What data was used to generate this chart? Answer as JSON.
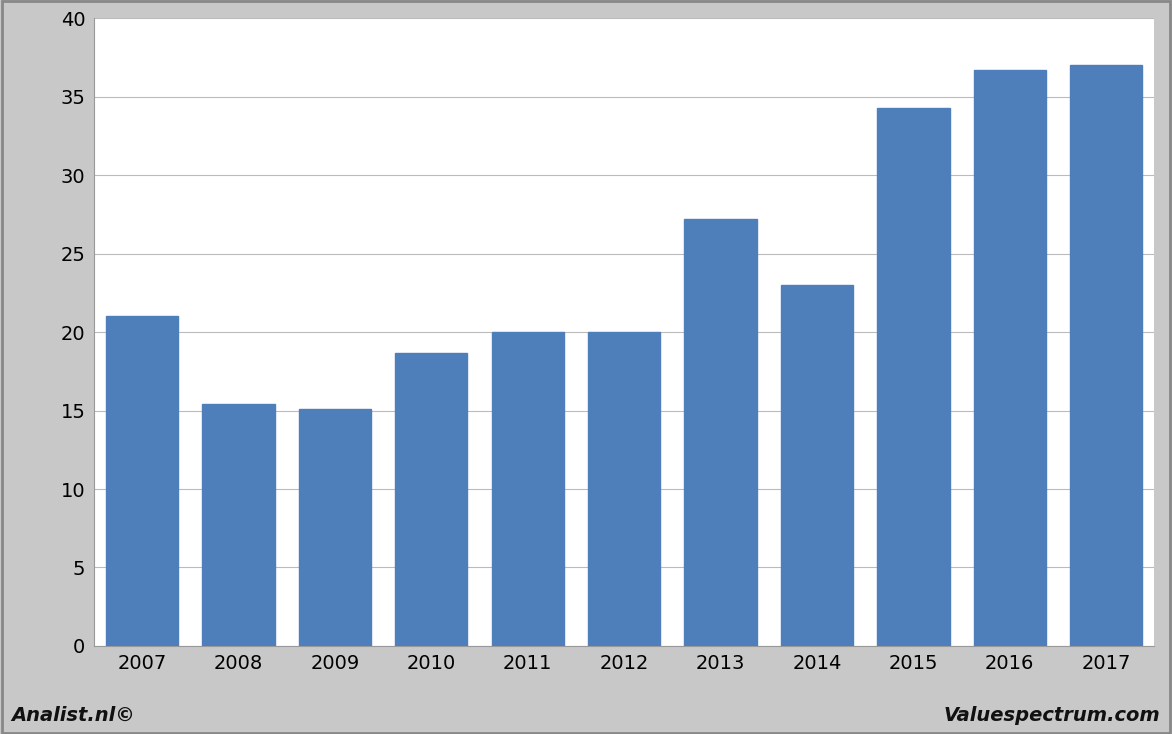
{
  "categories": [
    "2007",
    "2008",
    "2009",
    "2010",
    "2011",
    "2012",
    "2013",
    "2014",
    "2015",
    "2016",
    "2017"
  ],
  "values": [
    21.0,
    15.4,
    15.1,
    18.7,
    20.0,
    20.0,
    27.2,
    23.0,
    34.3,
    36.7,
    37.0
  ],
  "bar_color": "#4f7fba",
  "background_color": "#ffffff",
  "outer_background": "#c8c8c8",
  "ylim": [
    0,
    40
  ],
  "yticks": [
    0,
    5,
    10,
    15,
    20,
    25,
    30,
    35,
    40
  ],
  "grid_color": "#bbbbbb",
  "bar_width": 0.75,
  "footnote_left": "Analist.nl©",
  "footnote_right": "Valuespectrum.com",
  "footnote_fontsize": 14,
  "tick_fontsize": 14,
  "border_color": "#999999"
}
